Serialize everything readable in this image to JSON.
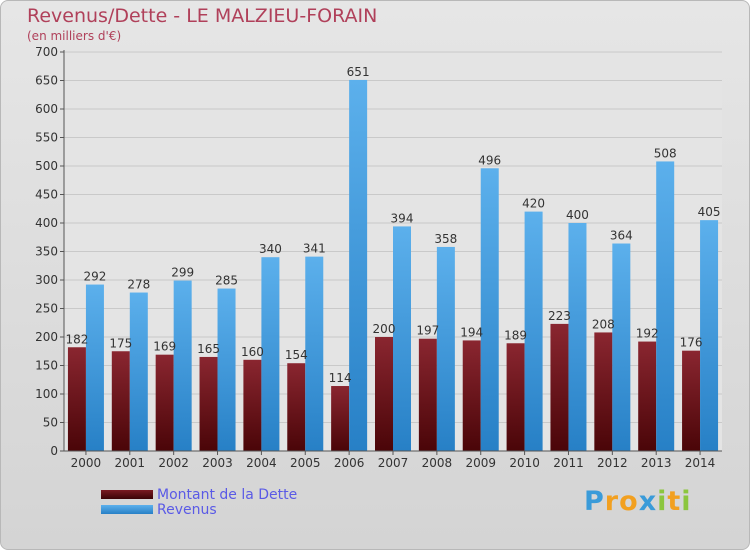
{
  "chart_data": {
    "type": "bar",
    "title": "Revenus/Dette - LE MALZIEU-FORAIN",
    "subtitle": "(en milliers d'€)",
    "categories": [
      "2000",
      "2001",
      "2002",
      "2003",
      "2004",
      "2005",
      "2006",
      "2007",
      "2008",
      "2009",
      "2010",
      "2011",
      "2012",
      "2013",
      "2014"
    ],
    "series": [
      {
        "name": "Montant de la Dette",
        "color": "#8a1f26",
        "values": [
          182,
          175,
          169,
          165,
          160,
          154,
          114,
          200,
          197,
          194,
          189,
          223,
          208,
          192,
          176
        ]
      },
      {
        "name": "Revenus",
        "color": "#3d97db",
        "values": [
          292,
          278,
          299,
          285,
          340,
          341,
          651,
          394,
          358,
          496,
          420,
          400,
          364,
          508,
          405
        ]
      }
    ],
    "ylim": [
      0,
      700
    ],
    "yticks": [
      0,
      50,
      100,
      150,
      200,
      250,
      300,
      350,
      400,
      450,
      500,
      550,
      600,
      650,
      700
    ],
    "grid": true,
    "legend_position": "bottom-left"
  },
  "brand": {
    "letters": [
      "P",
      "r",
      "o",
      "x",
      "i",
      "t",
      "i"
    ],
    "colors": [
      "#3a9bd9",
      "#f2a020",
      "#f2a020",
      "#3a9bd9",
      "#8cc63e",
      "#f2a020",
      "#8cc63e"
    ]
  }
}
